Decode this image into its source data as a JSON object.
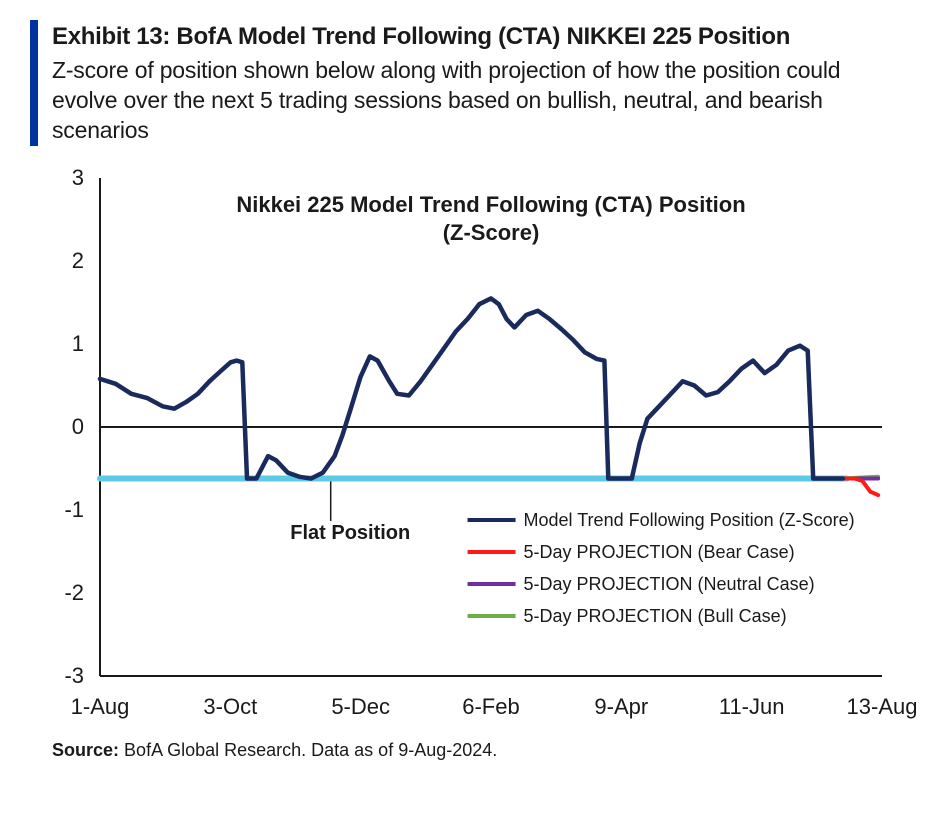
{
  "header": {
    "title": "Exhibit 13: BofA Model Trend Following (CTA) NIKKEI 225 Position",
    "subtitle": "Z-score of position shown below along with projection of how the position could evolve over the next 5 trading sessions based on bullish, neutral, and bearish scenarios"
  },
  "chart": {
    "type": "line",
    "title_line1": "Nikkei 225 Model Trend Following (CTA) Position",
    "title_line2": "(Z-Score)",
    "title_fontsize": 22,
    "title_fontweight": 700,
    "background_color": "#ffffff",
    "axis_color": "#1a1a1a",
    "axis_width": 2,
    "grid_on": false,
    "ylim": [
      -3,
      3
    ],
    "ytick_step": 1,
    "yticks": [
      -3,
      -2,
      -1,
      0,
      1,
      2,
      3
    ],
    "ytick_fontsize": 22,
    "xticks": [
      "1-Aug",
      "3-Oct",
      "5-Dec",
      "6-Feb",
      "9-Apr",
      "11-Jun",
      "13-Aug"
    ],
    "xtick_fontsize": 22,
    "flat_position": {
      "label": "Flat Position",
      "label_fontsize": 20,
      "label_fontweight": 700,
      "y": -0.62,
      "color": "#5fc9e8",
      "width": 6
    },
    "series": {
      "main": {
        "label": "Model Trend Following Position (Z-Score)",
        "color": "#1a2a5c",
        "width": 4.5,
        "data": [
          [
            0.0,
            0.58
          ],
          [
            0.02,
            0.52
          ],
          [
            0.04,
            0.4
          ],
          [
            0.06,
            0.35
          ],
          [
            0.08,
            0.25
          ],
          [
            0.095,
            0.22
          ],
          [
            0.11,
            0.3
          ],
          [
            0.125,
            0.4
          ],
          [
            0.14,
            0.55
          ],
          [
            0.155,
            0.68
          ],
          [
            0.167,
            0.78
          ],
          [
            0.175,
            0.8
          ],
          [
            0.182,
            0.78
          ],
          [
            0.188,
            -0.62
          ],
          [
            0.2,
            -0.62
          ],
          [
            0.215,
            -0.35
          ],
          [
            0.225,
            -0.4
          ],
          [
            0.24,
            -0.55
          ],
          [
            0.255,
            -0.6
          ],
          [
            0.27,
            -0.62
          ],
          [
            0.285,
            -0.55
          ],
          [
            0.3,
            -0.35
          ],
          [
            0.31,
            -0.1
          ],
          [
            0.32,
            0.2
          ],
          [
            0.333,
            0.6
          ],
          [
            0.345,
            0.85
          ],
          [
            0.355,
            0.8
          ],
          [
            0.37,
            0.55
          ],
          [
            0.38,
            0.4
          ],
          [
            0.395,
            0.38
          ],
          [
            0.41,
            0.55
          ],
          [
            0.425,
            0.75
          ],
          [
            0.44,
            0.95
          ],
          [
            0.455,
            1.15
          ],
          [
            0.47,
            1.3
          ],
          [
            0.485,
            1.48
          ],
          [
            0.5,
            1.55
          ],
          [
            0.51,
            1.48
          ],
          [
            0.52,
            1.3
          ],
          [
            0.53,
            1.2
          ],
          [
            0.545,
            1.35
          ],
          [
            0.56,
            1.4
          ],
          [
            0.575,
            1.3
          ],
          [
            0.59,
            1.18
          ],
          [
            0.605,
            1.05
          ],
          [
            0.62,
            0.9
          ],
          [
            0.635,
            0.82
          ],
          [
            0.645,
            0.8
          ],
          [
            0.65,
            -0.62
          ],
          [
            0.665,
            -0.62
          ],
          [
            0.68,
            -0.62
          ],
          [
            0.69,
            -0.2
          ],
          [
            0.7,
            0.1
          ],
          [
            0.715,
            0.25
          ],
          [
            0.73,
            0.4
          ],
          [
            0.745,
            0.55
          ],
          [
            0.76,
            0.5
          ],
          [
            0.775,
            0.38
          ],
          [
            0.79,
            0.42
          ],
          [
            0.805,
            0.55
          ],
          [
            0.82,
            0.7
          ],
          [
            0.835,
            0.8
          ],
          [
            0.85,
            0.65
          ],
          [
            0.865,
            0.75
          ],
          [
            0.88,
            0.92
          ],
          [
            0.895,
            0.98
          ],
          [
            0.905,
            0.92
          ],
          [
            0.912,
            -0.62
          ],
          [
            0.93,
            -0.62
          ],
          [
            0.95,
            -0.62
          ]
        ]
      },
      "bear": {
        "label": "5-Day PROJECTION (Bear Case)",
        "color": "#ff1a1a",
        "width": 4,
        "data": [
          [
            0.95,
            -0.62
          ],
          [
            0.965,
            -0.62
          ],
          [
            0.975,
            -0.65
          ],
          [
            0.985,
            -0.78
          ],
          [
            0.995,
            -0.82
          ]
        ]
      },
      "neutral": {
        "label": "5-Day PROJECTION (Neutral Case)",
        "color": "#7030a0",
        "width": 4,
        "data": [
          [
            0.95,
            -0.62
          ],
          [
            0.995,
            -0.62
          ]
        ]
      },
      "bull": {
        "label": "5-Day PROJECTION (Bull Case)",
        "color": "#70ad47",
        "width": 4,
        "data": [
          [
            0.95,
            -0.62
          ],
          [
            0.995,
            -0.6
          ]
        ]
      }
    },
    "legend": {
      "fontsize": 18,
      "items": [
        {
          "key": "main"
        },
        {
          "key": "bear"
        },
        {
          "key": "neutral"
        },
        {
          "key": "bull"
        }
      ]
    }
  },
  "source": {
    "label": "Source:",
    "text": "BofA Global Research.  Data as of 9-Aug-2024."
  }
}
